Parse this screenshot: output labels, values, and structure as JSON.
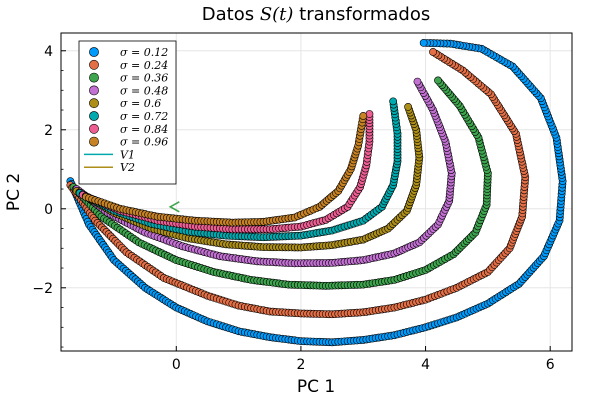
{
  "chart_data": {
    "type": "scatter",
    "title_main": "Datos ",
    "title_math": "S(t)",
    "title_tail": " transformados",
    "xlabel": "PC 1",
    "ylabel": "PC 2",
    "xlim": [
      -1.85,
      6.35
    ],
    "ylim": [
      -3.6,
      4.45
    ],
    "xticks": [
      0,
      2,
      4,
      6
    ],
    "xtick_labels": [
      "0",
      "2",
      "4",
      "6"
    ],
    "yticks": [
      -2,
      0,
      2,
      4
    ],
    "ytick_labels": [
      "−2",
      "0",
      "2",
      "4"
    ],
    "grid": true,
    "legend_position": "top-left",
    "series": [
      {
        "name": "σ = 0.12",
        "color": "#009AFA",
        "values": [
          [
            -1.7,
            0.7
          ],
          [
            -1.4,
            -0.4
          ],
          [
            -1.0,
            -1.3
          ],
          [
            -0.5,
            -2.0
          ],
          [
            0.0,
            -2.5
          ],
          [
            0.5,
            -2.85
          ],
          [
            1.0,
            -3.1
          ],
          [
            1.5,
            -3.25
          ],
          [
            2.0,
            -3.35
          ],
          [
            2.5,
            -3.38
          ],
          [
            3.0,
            -3.32
          ],
          [
            3.5,
            -3.2
          ],
          [
            4.0,
            -3.0
          ],
          [
            4.5,
            -2.75
          ],
          [
            5.0,
            -2.4
          ],
          [
            5.5,
            -1.9
          ],
          [
            5.9,
            -1.2
          ],
          [
            6.15,
            -0.3
          ],
          [
            6.2,
            0.7
          ],
          [
            6.1,
            1.8
          ],
          [
            5.85,
            2.8
          ],
          [
            5.4,
            3.6
          ],
          [
            4.9,
            4.05
          ],
          [
            4.4,
            4.18
          ],
          [
            3.97,
            4.2
          ]
        ]
      },
      {
        "name": "σ = 0.24",
        "color": "#E36F47",
        "values": [
          [
            -1.7,
            0.6
          ],
          [
            -1.3,
            -0.3
          ],
          [
            -0.8,
            -1.1
          ],
          [
            -0.2,
            -1.75
          ],
          [
            0.5,
            -2.2
          ],
          [
            1.0,
            -2.45
          ],
          [
            1.5,
            -2.6
          ],
          [
            2.0,
            -2.65
          ],
          [
            2.5,
            -2.67
          ],
          [
            3.0,
            -2.62
          ],
          [
            3.5,
            -2.5
          ],
          [
            4.0,
            -2.3
          ],
          [
            4.5,
            -2.0
          ],
          [
            5.0,
            -1.6
          ],
          [
            5.35,
            -1.0
          ],
          [
            5.55,
            -0.2
          ],
          [
            5.6,
            0.8
          ],
          [
            5.45,
            1.9
          ],
          [
            5.05,
            2.9
          ],
          [
            4.6,
            3.5
          ],
          [
            4.12,
            3.97
          ]
        ]
      },
      {
        "name": "σ = 0.36",
        "color": "#3EA44E",
        "values": [
          [
            -1.65,
            0.55
          ],
          [
            -1.2,
            -0.2
          ],
          [
            -0.6,
            -0.85
          ],
          [
            0.0,
            -1.3
          ],
          [
            0.6,
            -1.6
          ],
          [
            1.2,
            -1.8
          ],
          [
            1.8,
            -1.92
          ],
          [
            2.4,
            -1.95
          ],
          [
            3.0,
            -1.92
          ],
          [
            3.5,
            -1.8
          ],
          [
            4.0,
            -1.55
          ],
          [
            4.45,
            -1.15
          ],
          [
            4.8,
            -0.6
          ],
          [
            4.98,
            0.1
          ],
          [
            5.0,
            0.9
          ],
          [
            4.85,
            1.8
          ],
          [
            4.55,
            2.6
          ],
          [
            4.2,
            3.25
          ]
        ]
      },
      {
        "name": "σ = 0.48",
        "color": "#C271D2",
        "values": [
          [
            -1.6,
            0.5
          ],
          [
            -1.1,
            -0.1
          ],
          [
            -0.5,
            -0.6
          ],
          [
            0.1,
            -0.95
          ],
          [
            0.7,
            -1.2
          ],
          [
            1.3,
            -1.33
          ],
          [
            1.9,
            -1.38
          ],
          [
            2.5,
            -1.37
          ],
          [
            3.0,
            -1.3
          ],
          [
            3.5,
            -1.13
          ],
          [
            3.9,
            -0.85
          ],
          [
            4.2,
            -0.4
          ],
          [
            4.38,
            0.2
          ],
          [
            4.42,
            0.9
          ],
          [
            4.32,
            1.7
          ],
          [
            4.12,
            2.5
          ],
          [
            3.87,
            3.22
          ]
        ]
      },
      {
        "name": "σ = 0.6",
        "color": "#AC8E18",
        "values": [
          [
            -1.6,
            0.45
          ],
          [
            -1.0,
            -0.1
          ],
          [
            -0.4,
            -0.5
          ],
          [
            0.2,
            -0.75
          ],
          [
            0.8,
            -0.9
          ],
          [
            1.4,
            -0.97
          ],
          [
            2.0,
            -0.98
          ],
          [
            2.5,
            -0.92
          ],
          [
            3.0,
            -0.78
          ],
          [
            3.4,
            -0.5
          ],
          [
            3.7,
            -0.05
          ],
          [
            3.85,
            0.6
          ],
          [
            3.9,
            1.3
          ],
          [
            3.85,
            2.0
          ],
          [
            3.72,
            2.58
          ]
        ]
      },
      {
        "name": "σ = 0.72",
        "color": "#00A9AD",
        "values": [
          [
            -1.55,
            0.4
          ],
          [
            -1.0,
            -0.05
          ],
          [
            -0.4,
            -0.38
          ],
          [
            0.2,
            -0.58
          ],
          [
            0.8,
            -0.68
          ],
          [
            1.4,
            -0.72
          ],
          [
            2.0,
            -0.68
          ],
          [
            2.5,
            -0.55
          ],
          [
            3.0,
            -0.3
          ],
          [
            3.3,
            0.05
          ],
          [
            3.48,
            0.6
          ],
          [
            3.55,
            1.2
          ],
          [
            3.55,
            1.9
          ],
          [
            3.48,
            2.72
          ]
        ]
      },
      {
        "name": "σ = 0.84",
        "color": "#ED5E93",
        "values": [
          [
            -1.5,
            0.35
          ],
          [
            -0.9,
            -0.05
          ],
          [
            -0.3,
            -0.3
          ],
          [
            0.3,
            -0.45
          ],
          [
            0.9,
            -0.52
          ],
          [
            1.5,
            -0.52
          ],
          [
            2.0,
            -0.45
          ],
          [
            2.4,
            -0.28
          ],
          [
            2.75,
            0.05
          ],
          [
            2.95,
            0.55
          ],
          [
            3.05,
            1.1
          ],
          [
            3.1,
            1.7
          ],
          [
            3.1,
            2.4
          ]
        ]
      },
      {
        "name": "σ = 0.96",
        "color": "#C68224",
        "values": [
          [
            -1.45,
            0.3
          ],
          [
            -0.9,
            0.0
          ],
          [
            -0.3,
            -0.2
          ],
          [
            0.3,
            -0.3
          ],
          [
            0.9,
            -0.35
          ],
          [
            1.4,
            -0.33
          ],
          [
            1.9,
            -0.22
          ],
          [
            2.3,
            0.05
          ],
          [
            2.6,
            0.45
          ],
          [
            2.8,
            1.0
          ],
          [
            2.92,
            1.6
          ],
          [
            3.0,
            2.35
          ]
        ]
      }
    ],
    "lines": [
      {
        "name": "V1",
        "color": "#00A9AD"
      },
      {
        "name": "V2",
        "color": "#AC8E18"
      }
    ]
  }
}
